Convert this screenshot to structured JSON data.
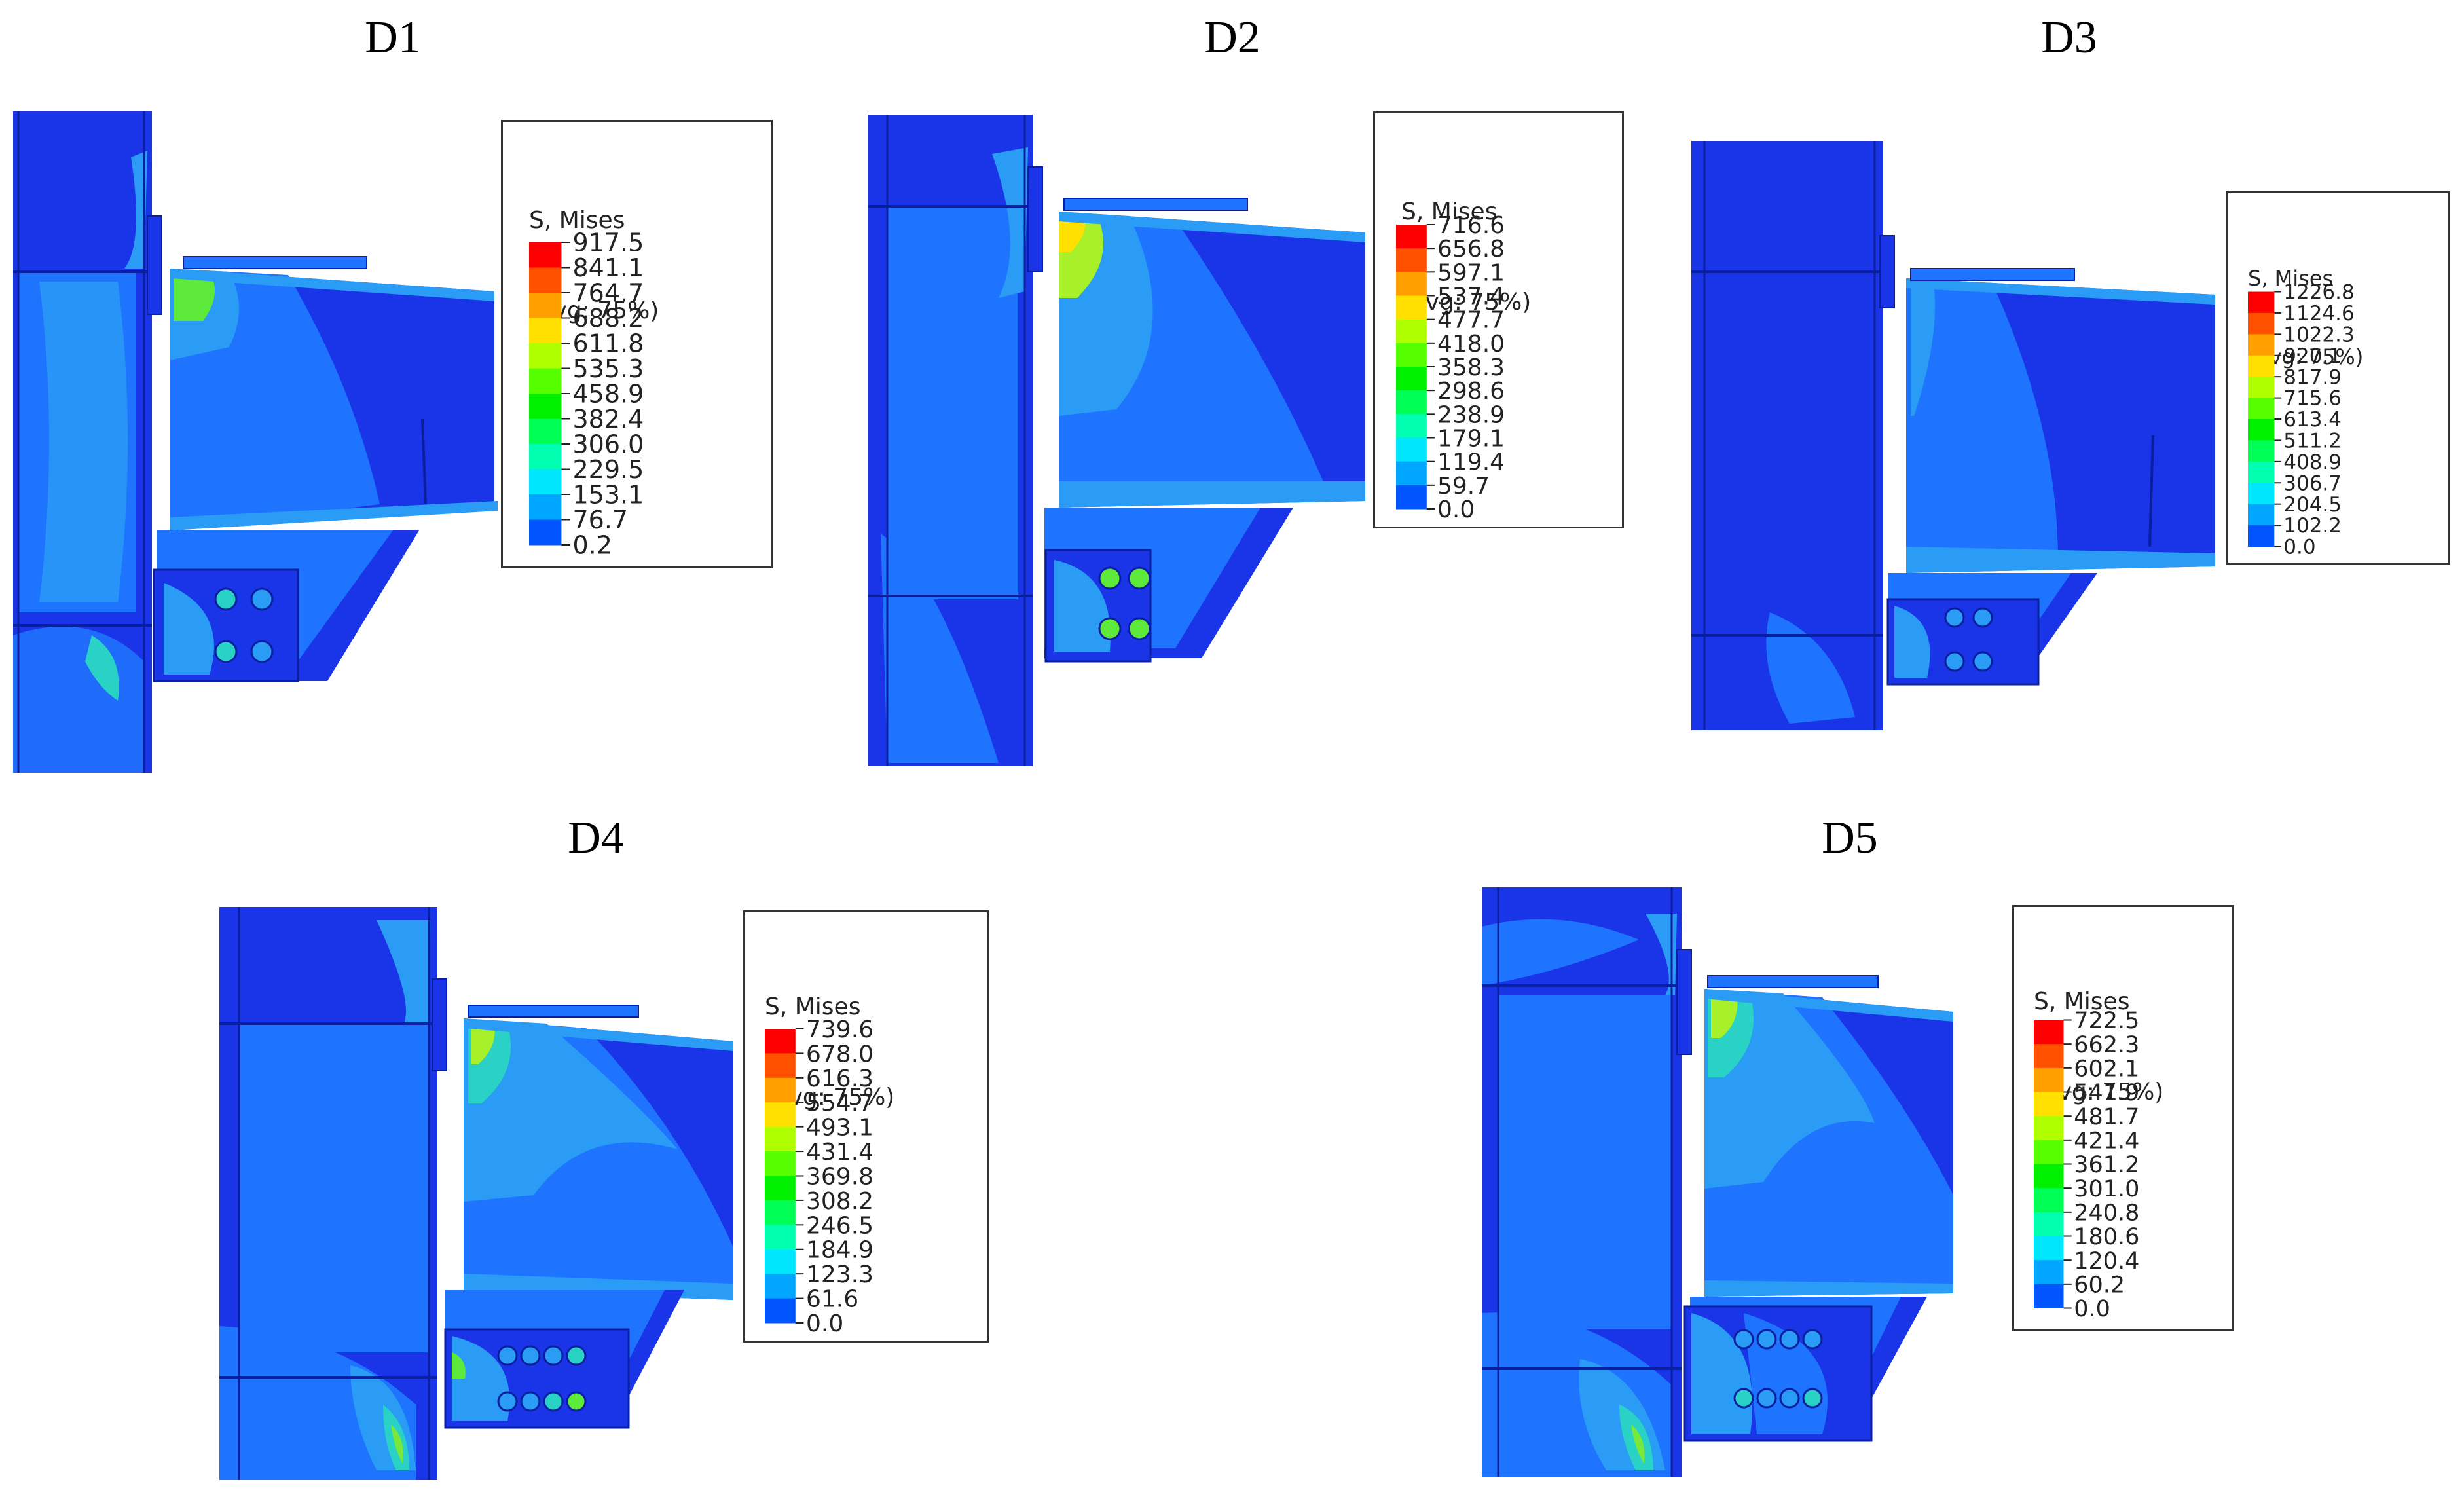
{
  "colors": {
    "contour": [
      "#0000ff",
      "#0055ff",
      "#00a6ff",
      "#00e6ff",
      "#00ffb0",
      "#00ff55",
      "#00f000",
      "#55ff00",
      "#b0ff00",
      "#ffe000",
      "#ffa000",
      "#ff5000",
      "#ff0000"
    ],
    "page_background": "#ffffff"
  },
  "legend": {
    "header_line1": "S, Mises",
    "header_line2": "(Avg: 75%)"
  },
  "panels": [
    {
      "id": "D1",
      "title": "D1",
      "legend_values": [
        "917.5",
        "841.1",
        "764.7",
        "688.2",
        "611.8",
        "535.3",
        "458.9",
        "382.4",
        "306.0",
        "229.5",
        "153.1",
        "76.7",
        "0.2"
      ]
    },
    {
      "id": "D2",
      "title": "D2",
      "legend_values": [
        "716.6",
        "656.8",
        "597.1",
        "537.4",
        "477.7",
        "418.0",
        "358.3",
        "298.6",
        "238.9",
        "179.1",
        "119.4",
        "59.7",
        "0.0"
      ]
    },
    {
      "id": "D3",
      "title": "D3",
      "legend_values": [
        "1226.8",
        "1124.6",
        "1022.3",
        "920.1",
        "817.9",
        "715.6",
        "613.4",
        "511.2",
        "408.9",
        "306.7",
        "204.5",
        "102.2",
        "0.0"
      ]
    },
    {
      "id": "D4",
      "title": "D4",
      "legend_values": [
        "739.6",
        "678.0",
        "616.3",
        "554.7",
        "493.1",
        "431.4",
        "369.8",
        "308.2",
        "246.5",
        "184.9",
        "123.3",
        "61.6",
        "0.0"
      ]
    },
    {
      "id": "D5",
      "title": "D5",
      "legend_values": [
        "722.5",
        "662.3",
        "602.1",
        "541.9",
        "481.7",
        "421.4",
        "361.2",
        "301.0",
        "240.8",
        "180.6",
        "120.4",
        "60.2",
        "0.0"
      ]
    }
  ]
}
